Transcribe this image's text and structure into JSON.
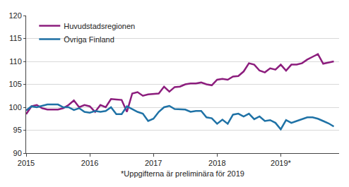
{
  "chart_data": {
    "type": "line",
    "xlabel": "*Uppgifterna är preliminära för 2019",
    "categories": [
      "2015",
      null,
      null,
      null,
      null,
      null,
      null,
      null,
      null,
      null,
      null,
      null,
      "2016",
      null,
      null,
      null,
      null,
      null,
      null,
      null,
      null,
      null,
      null,
      null,
      "2017",
      null,
      null,
      null,
      null,
      null,
      null,
      null,
      null,
      null,
      null,
      null,
      "2018",
      null,
      null,
      null,
      null,
      null,
      null,
      null,
      null,
      null,
      null,
      null,
      "2019*",
      null,
      null,
      null,
      null,
      null,
      null,
      null,
      null,
      null,
      null
    ],
    "series": [
      {
        "name": "Huvudstadsregionen",
        "color": "#8c1d7d",
        "values": [
          98.5,
          100.2,
          100.5,
          99.8,
          99.5,
          99.5,
          99.5,
          99.8,
          100.5,
          101.5,
          100.0,
          100.5,
          100.2,
          99.0,
          100.5,
          100.0,
          101.8,
          101.7,
          101.6,
          99.0,
          103.0,
          103.3,
          102.5,
          102.8,
          102.9,
          103.0,
          104.5,
          103.4,
          104.4,
          104.5,
          105.0,
          105.2,
          105.2,
          105.4,
          105.0,
          104.8,
          106.0,
          106.2,
          106.0,
          106.7,
          106.8,
          107.8,
          109.6,
          109.3,
          108.0,
          107.6,
          108.5,
          108.2,
          109.3,
          108.0,
          109.3,
          109.3,
          109.6,
          110.4,
          111.0,
          111.6,
          109.5,
          109.7,
          110.0
        ]
      },
      {
        "name": "Övriga Finland",
        "color": "#1f72a6",
        "values": [
          99.3,
          100.2,
          100.0,
          100.3,
          100.6,
          100.6,
          100.6,
          100.0,
          100.0,
          99.4,
          99.8,
          99.0,
          98.8,
          99.2,
          99.0,
          99.2,
          100.0,
          98.5,
          98.5,
          100.2,
          99.6,
          99.0,
          98.6,
          97.0,
          97.5,
          99.0,
          100.0,
          100.3,
          99.6,
          99.5,
          99.5,
          99.0,
          99.2,
          99.2,
          97.8,
          97.6,
          96.4,
          97.3,
          96.4,
          98.4,
          98.6,
          98.0,
          98.6,
          97.4,
          98.0,
          97.0,
          97.2,
          96.6,
          95.2,
          97.2,
          96.6,
          97.0,
          97.4,
          97.8,
          97.8,
          97.5,
          97.0,
          96.5,
          95.8
        ]
      }
    ],
    "ylim": [
      90,
      120
    ],
    "yticks": [
      90,
      95,
      100,
      105,
      110,
      115,
      120
    ],
    "grid": true,
    "legend": "top-left"
  }
}
